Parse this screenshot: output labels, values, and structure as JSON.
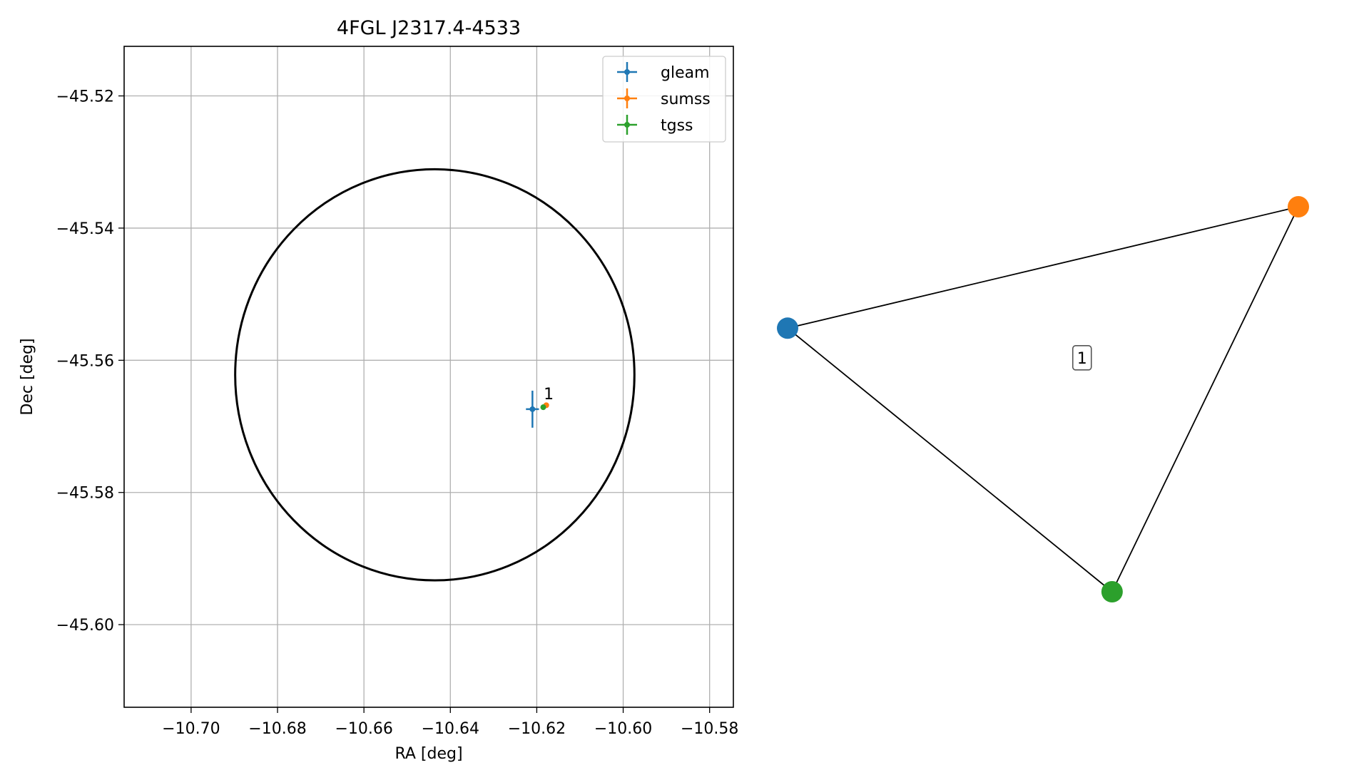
{
  "chart_data": [
    {
      "type": "scatter",
      "title": "4FGL J2317.4-4533",
      "xlabel": "RA [deg]",
      "ylabel": "Dec [deg]",
      "xlim": [
        -10.7155,
        -10.5745
      ],
      "ylim": [
        -45.6125,
        -45.5125
      ],
      "grid": true,
      "xticks": [
        -10.7,
        -10.68,
        -10.66,
        -10.64,
        -10.62,
        -10.6,
        -10.58
      ],
      "xtick_labels": [
        "−10.70",
        "−10.68",
        "−10.66",
        "−10.64",
        "−10.62",
        "−10.60",
        "−10.58"
      ],
      "yticks": [
        -45.52,
        -45.54,
        -45.56,
        -45.58,
        -45.6
      ],
      "ytick_labels": [
        "−45.52",
        "−45.54",
        "−45.56",
        "−45.58",
        "−45.60"
      ],
      "legend_position": "upper right",
      "series": [
        {
          "name": "gleam",
          "color": "#1f77b4",
          "x": -10.621,
          "y": -45.5674,
          "xerr": 0.0015,
          "yerr": 0.0028
        },
        {
          "name": "sumss",
          "color": "#ff7f0e",
          "x": -10.6178,
          "y": -45.5668,
          "xerr": 0.0005,
          "yerr": 0.0003
        },
        {
          "name": "tgss",
          "color": "#2ca02c",
          "x": -10.6185,
          "y": -45.5671,
          "xerr": 0.0004,
          "yerr": 0.0003
        }
      ],
      "circle": {
        "center_x": -10.6436,
        "center_y": -45.5622,
        "radius_x": 0.0462,
        "radius_y": 0.0311,
        "color": "#000000"
      },
      "annotations": [
        {
          "text": "1",
          "x": -10.6184,
          "y": -45.5659
        }
      ]
    },
    {
      "type": "network",
      "nodes": [
        {
          "name": "gleam",
          "color": "#1f77b4",
          "x": -0.7,
          "y": 0.17
        },
        {
          "name": "sumss",
          "color": "#ff7f0e",
          "x": 1.0,
          "y": 0.58
        },
        {
          "name": "tgss",
          "color": "#2ca02c",
          "x": 0.38,
          "y": -0.72
        }
      ],
      "edges": [
        [
          "gleam",
          "sumss"
        ],
        [
          "sumss",
          "tgss"
        ],
        [
          "gleam",
          "tgss"
        ]
      ],
      "label": {
        "text": "1",
        "x": 0.28,
        "y": 0.07
      }
    }
  ]
}
